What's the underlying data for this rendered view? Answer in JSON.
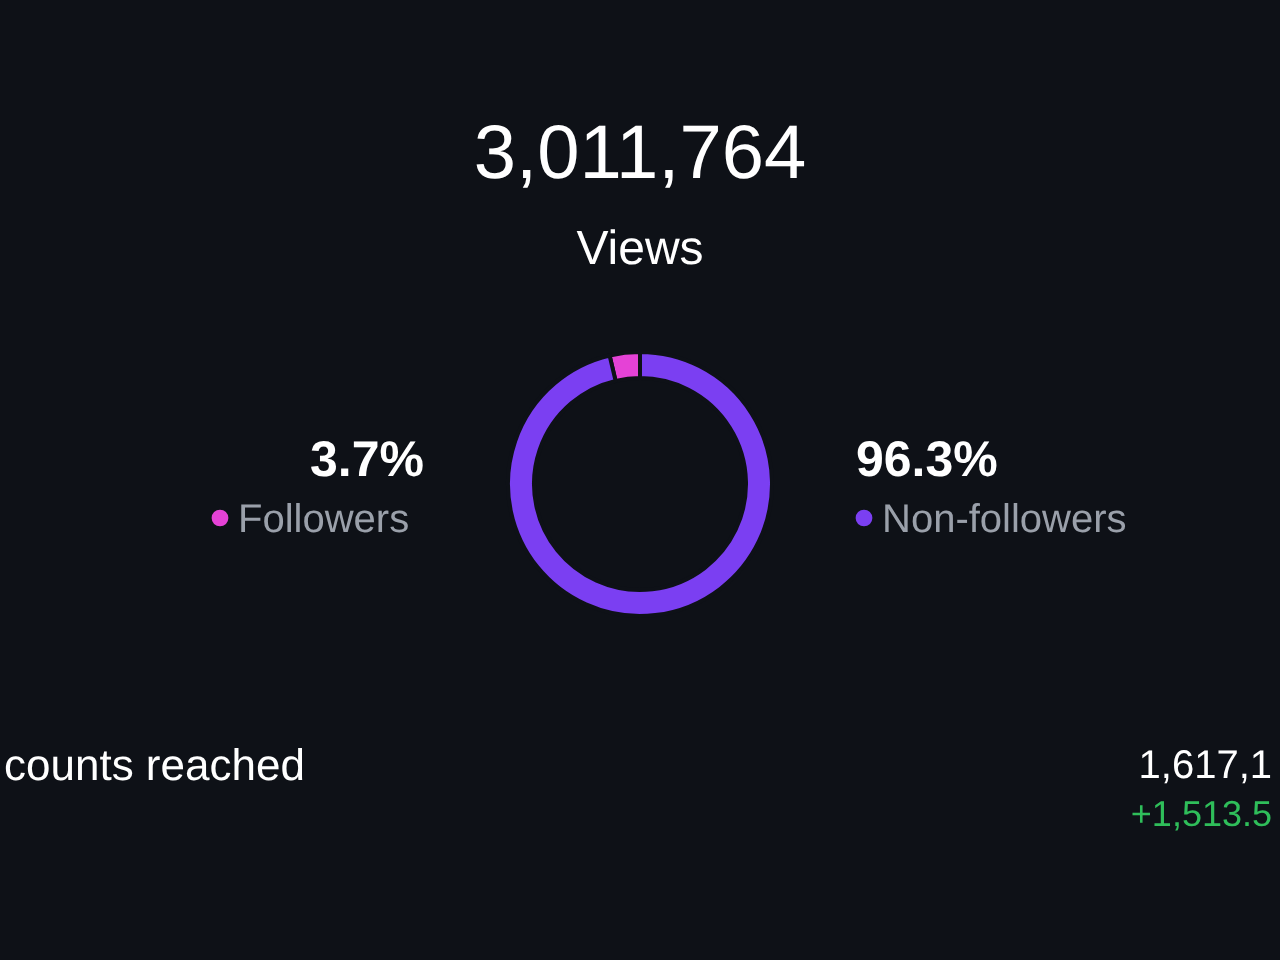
{
  "chart_data": {
    "type": "donut",
    "title": "3,011,764",
    "subtitle": "Views",
    "categories": [
      "Followers",
      "Non-followers"
    ],
    "values": [
      3.7,
      96.3
    ],
    "value_labels": [
      "3.7%",
      "96.3%"
    ],
    "colors": [
      "#e542d6",
      "#7b3ff2"
    ],
    "legend": "bottom right",
    "annotations": [
      "counts reached",
      "1,617,1",
      "+1,513.5"
    ]
  }
}
